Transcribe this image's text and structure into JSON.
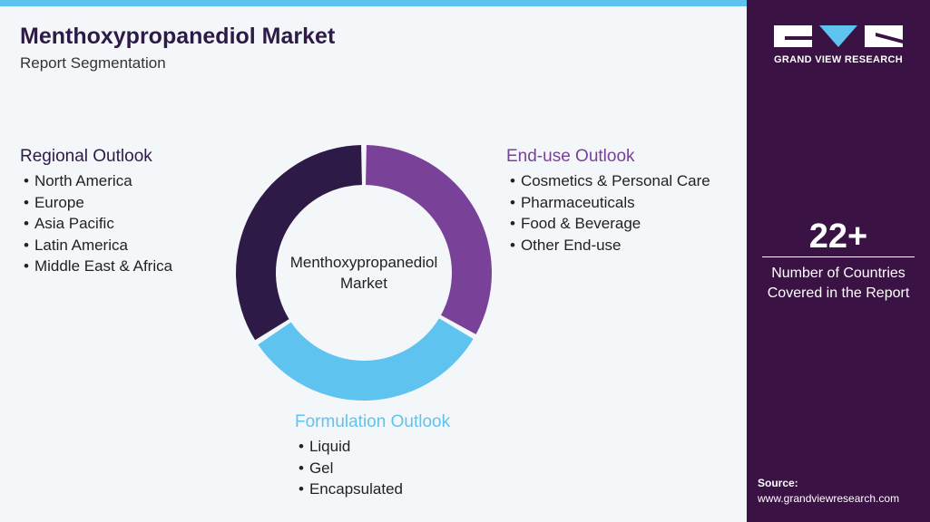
{
  "header": {
    "title": "Menthoxypropanediol Market",
    "subtitle": "Report Segmentation"
  },
  "center_label": "Menthoxypropanediol Market",
  "segments": [
    {
      "title": "Regional Outlook",
      "items": [
        "North America",
        "Europe",
        "Asia Pacific",
        "Latin America",
        "Middle East & Africa"
      ]
    },
    {
      "title": "End-use Outlook",
      "items": [
        "Cosmetics & Personal Care",
        "Pharmaceuticals",
        "Food & Beverage",
        "Other End-use"
      ]
    },
    {
      "title": "Formulation Outlook",
      "items": [
        "Liquid",
        "Gel",
        "Encapsulated"
      ]
    }
  ],
  "sidebar": {
    "brand": "GRAND VIEW RESEARCH",
    "stat": "22+",
    "stat_label": "Number of Countries Covered in the Report",
    "source_label": "Source:",
    "source_url": "www.grandviewresearch.com"
  }
}
